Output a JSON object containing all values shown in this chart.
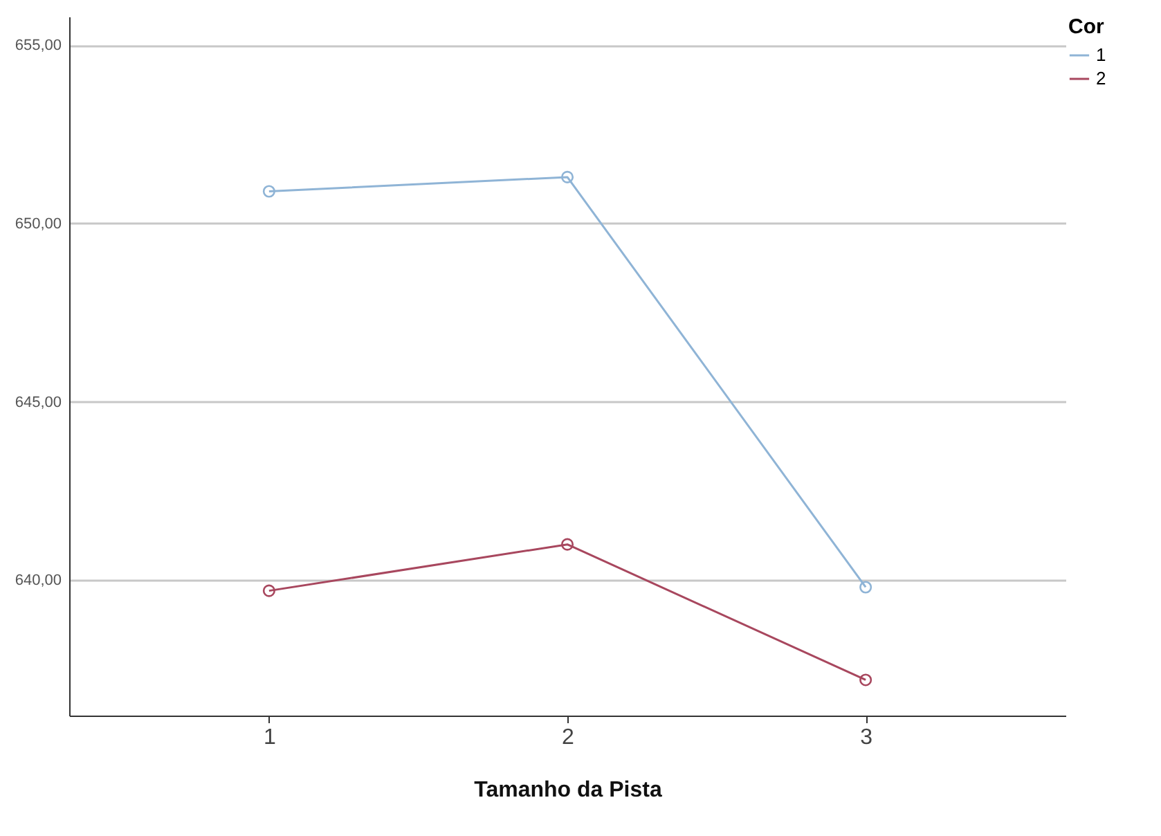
{
  "chart_data": {
    "type": "line",
    "xlabel": "Tamanho da Pista",
    "legend_title": "Cor",
    "categories": [
      "1",
      "2",
      "3"
    ],
    "series": [
      {
        "name": "1",
        "color": "#8fb4d6",
        "values": [
          650.9,
          651.3,
          639.8
        ]
      },
      {
        "name": "2",
        "color": "#a8475e",
        "values": [
          639.7,
          641.0,
          637.2
        ]
      }
    ],
    "ylim": [
      636.2,
      655.8
    ],
    "yticks": [
      {
        "value": 640,
        "label": "640,00"
      },
      {
        "value": 645,
        "label": "645,00"
      },
      {
        "value": 650,
        "label": "650,00"
      },
      {
        "value": 655,
        "label": "655,00"
      }
    ],
    "grid": "y",
    "legend": "top right",
    "marker": "circle",
    "line_style": "solid"
  }
}
